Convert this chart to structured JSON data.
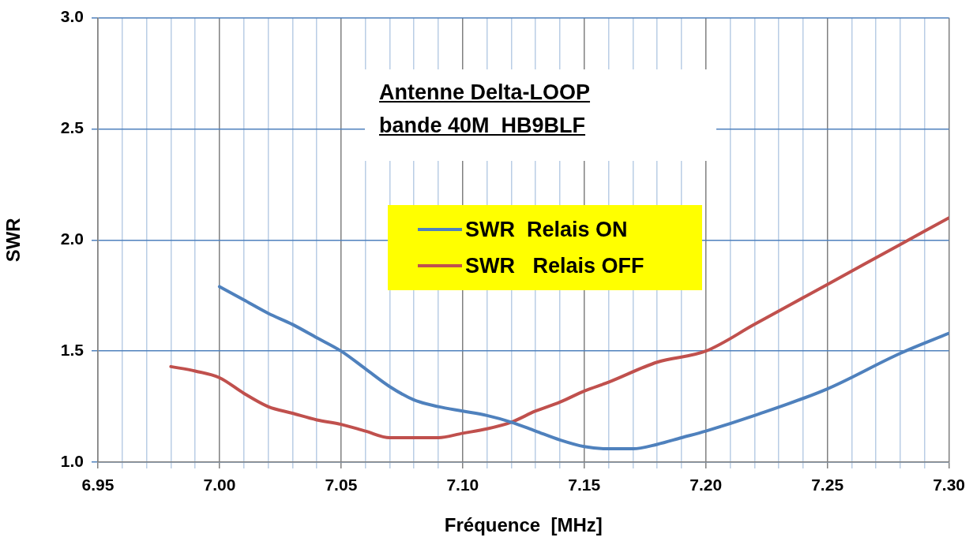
{
  "chart_data": {
    "type": "line",
    "title": "Antenne Delta-LOOP\nbande 40M  HB9BLF",
    "xlabel": "Fréquence  [MHz]",
    "ylabel": "SWR",
    "series": [
      {
        "name": "SWR  Relais ON",
        "color": "#4f81bd",
        "x": [
          7.0,
          7.01,
          7.02,
          7.03,
          7.04,
          7.05,
          7.06,
          7.07,
          7.08,
          7.09,
          7.1,
          7.11,
          7.12,
          7.13,
          7.14,
          7.15,
          7.16,
          7.17,
          7.18,
          7.19,
          7.2,
          7.22,
          7.25,
          7.28,
          7.3
        ],
        "values": [
          1.79,
          1.73,
          1.67,
          1.62,
          1.56,
          1.5,
          1.42,
          1.34,
          1.28,
          1.25,
          1.23,
          1.21,
          1.18,
          1.14,
          1.1,
          1.07,
          1.06,
          1.06,
          1.08,
          1.11,
          1.14,
          1.21,
          1.33,
          1.49,
          1.58
        ]
      },
      {
        "name": "SWR   Relais OFF",
        "color": "#c0504d",
        "x": [
          6.98,
          6.99,
          7.0,
          7.01,
          7.02,
          7.03,
          7.04,
          7.05,
          7.06,
          7.07,
          7.08,
          7.09,
          7.1,
          7.11,
          7.12,
          7.13,
          7.14,
          7.15,
          7.16,
          7.18,
          7.2,
          7.22,
          7.25,
          7.28,
          7.3
        ],
        "values": [
          1.43,
          1.41,
          1.38,
          1.31,
          1.25,
          1.22,
          1.19,
          1.17,
          1.14,
          1.11,
          1.11,
          1.11,
          1.13,
          1.15,
          1.18,
          1.23,
          1.27,
          1.32,
          1.36,
          1.45,
          1.5,
          1.62,
          1.8,
          1.98,
          2.1
        ]
      }
    ],
    "xlim": [
      6.95,
      7.3
    ],
    "xticks": [
      6.95,
      {
        "value": 6.96,
        "label": null
      },
      {
        "value": 6.97,
        "label": null
      },
      {
        "value": 6.98,
        "label": null
      },
      {
        "value": 6.99,
        "label": null
      },
      {
        "value": 7.0,
        "label": "7.00"
      },
      {
        "value": 7.01,
        "label": null
      },
      {
        "value": 7.02,
        "label": null
      },
      {
        "value": 7.03,
        "label": null
      },
      {
        "value": 7.04,
        "label": null
      },
      7.05,
      {
        "value": 7.06,
        "label": null
      },
      {
        "value": 7.07,
        "label": null
      },
      {
        "value": 7.08,
        "label": null
      },
      {
        "value": 7.09,
        "label": null
      },
      {
        "value": 7.1,
        "label": "7.10"
      },
      {
        "value": 7.11,
        "label": null
      },
      {
        "value": 7.12,
        "label": null
      },
      {
        "value": 7.13,
        "label": null
      },
      {
        "value": 7.14,
        "label": null
      },
      7.15,
      {
        "value": 7.16,
        "label": null
      },
      {
        "value": 7.17,
        "label": null
      },
      {
        "value": 7.18,
        "label": null
      },
      {
        "value": 7.19,
        "label": null
      },
      {
        "value": 7.2,
        "label": "7.20"
      },
      {
        "value": 7.21,
        "label": null
      },
      {
        "value": 7.22,
        "label": null
      },
      {
        "value": 7.23,
        "label": null
      },
      {
        "value": 7.24,
        "label": null
      },
      7.25,
      {
        "value": 7.26,
        "label": null
      },
      {
        "value": 7.27,
        "label": null
      },
      {
        "value": 7.28,
        "label": null
      },
      {
        "value": 7.29,
        "label": null
      },
      {
        "value": 7.3,
        "label": "7.30"
      }
    ],
    "ylim": [
      1.0,
      3.0
    ],
    "yticks": [
      {
        "value": 1,
        "label": "1.0"
      },
      1.5,
      {
        "value": 2,
        "label": "2.0"
      },
      2.5,
      {
        "value": 3,
        "label": "3.0"
      }
    ],
    "grid": true,
    "legend": "center",
    "marker": "none",
    "line_style": "solid"
  }
}
